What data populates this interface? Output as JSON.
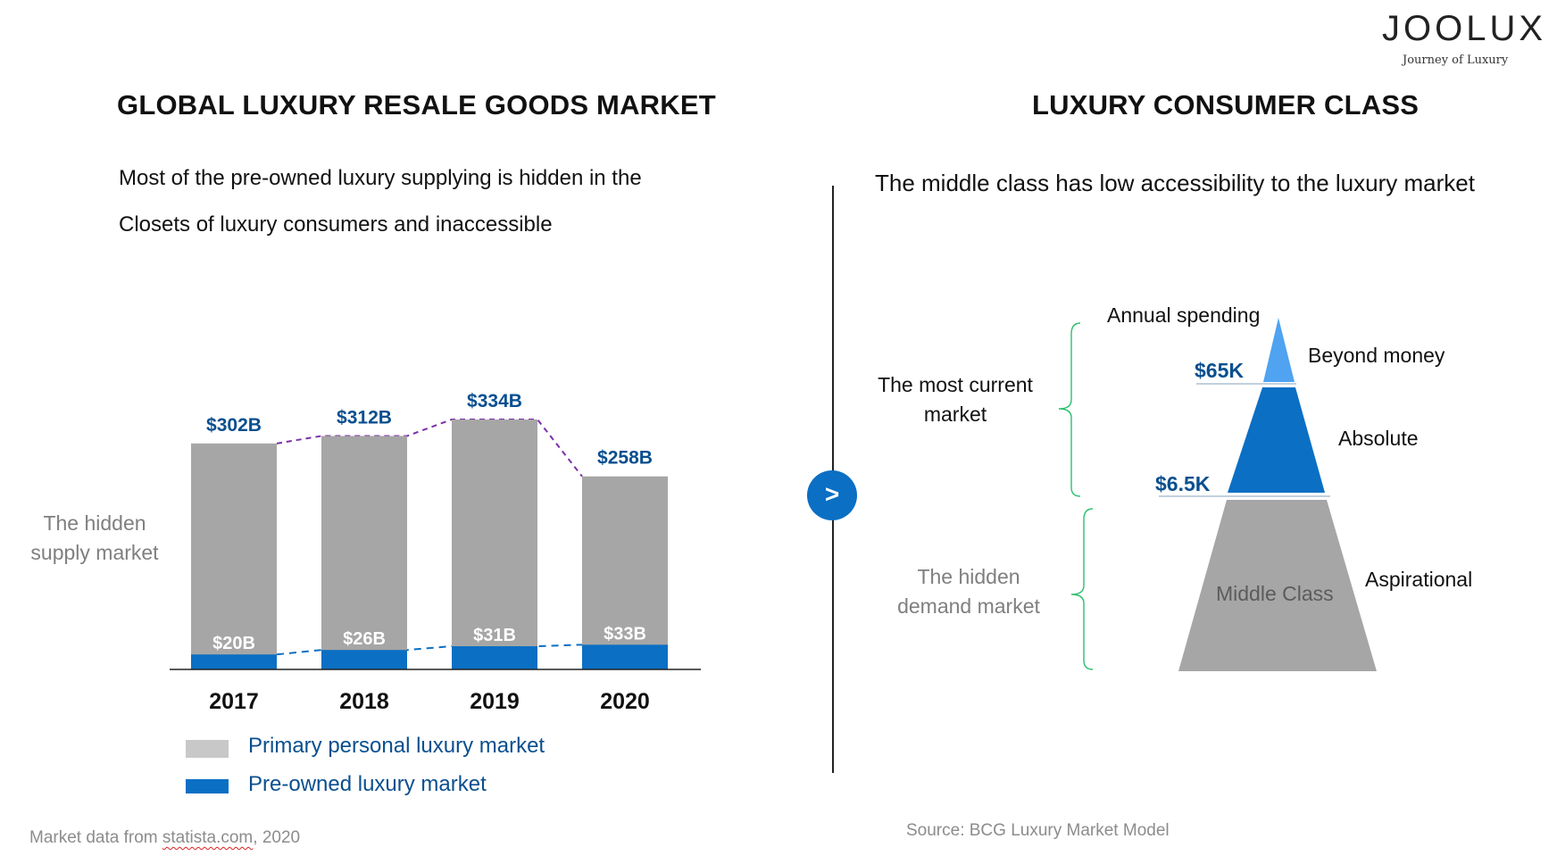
{
  "logo": {
    "brand": "JOOLUX",
    "tagline": "Journey of Luxury"
  },
  "left": {
    "title": "GLOBAL LUXURY RESALE GOODS MARKET",
    "subtitle_line1": "Most of the pre-owned luxury supplying is hidden in the",
    "subtitle_line2": "Closets of luxury consumers and inaccessible",
    "side_label_line1": "The hidden",
    "side_label_line2": "supply market"
  },
  "chart_data": {
    "type": "bar",
    "stacked": true,
    "title": "GLOBAL LUXURY RESALE GOODS MARKET",
    "categories": [
      "2017",
      "2018",
      "2019",
      "2020"
    ],
    "series": [
      {
        "name": "Primary personal luxury market",
        "values": [
          302,
          312,
          334,
          258
        ],
        "labels": [
          "$302B",
          "$312B",
          "$334B",
          "$258B"
        ],
        "color": "#a6a6a6"
      },
      {
        "name": "Pre-owned luxury market",
        "values": [
          20,
          26,
          31,
          33
        ],
        "labels": [
          "$20B",
          "$26B",
          "$31B",
          "$33B"
        ],
        "color": "#0b6fc4"
      }
    ],
    "ylim": [
      0,
      400
    ],
    "unit": "B USD",
    "trend_colors": {
      "primary": "#7b2fa8",
      "preowned": "#0b6fc4"
    }
  },
  "legend": [
    {
      "label": "Primary personal luxury market",
      "color": "#c8c8c8"
    },
    {
      "label": "Pre-owned luxury market",
      "color": "#0b6fc4"
    }
  ],
  "source_left": {
    "prefix": "Market data from ",
    "link": "statista.com",
    "suffix": ", 2020"
  },
  "divider_button": {
    "label": ">"
  },
  "right": {
    "title": "LUXURY CONSUMER CLASS",
    "subtitle": "The middle class has low accessibility to the luxury market",
    "pyramid": {
      "axis_label": "Annual spending",
      "thresholds": [
        "$65K",
        "$6.5K"
      ],
      "tiers": [
        {
          "name": "Beyond money",
          "color": "#4fa3f0"
        },
        {
          "name": "Absolute",
          "color": "#0b6fc4"
        },
        {
          "name": "Aspirational",
          "inner": "Middle Class",
          "color": "#a6a6a6"
        }
      ]
    },
    "group_top_line1": "The most current",
    "group_top_line2": "market",
    "group_bottom_line1": "The hidden",
    "group_bottom_line2": "demand market"
  },
  "source_right": "Source: BCG Luxury Market Model"
}
